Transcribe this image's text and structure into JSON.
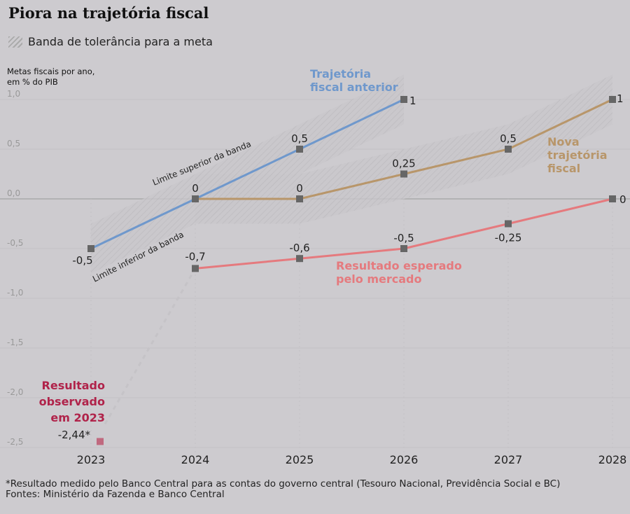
{
  "title": "Piora na trajetória fiscal",
  "legend": {
    "band_label": "Banda de tolerância para a meta"
  },
  "chart_data": {
    "type": "line",
    "ylabel": "Metas fiscais por ano,\nem % do PIB",
    "ylabel_lines": [
      "Metas fiscais por ano,",
      "em % do PIB"
    ],
    "ylim": [
      -2.5,
      1.0
    ],
    "yticks": [
      "1,0",
      "0,5",
      "0,0",
      "-0,5",
      "-1,0",
      "-1,5",
      "-2,0",
      "-2,5"
    ],
    "ytick_values": [
      1.0,
      0.5,
      0.0,
      -0.5,
      -1.0,
      -1.5,
      -2.0,
      -2.5
    ],
    "categories": [
      "2023",
      "2024",
      "2025",
      "2026",
      "2027",
      "2028"
    ],
    "grid": true,
    "band_halfwidth": 0.25,
    "band_annotations": [
      "Limite superior da banda",
      "Limite inferior da banda"
    ],
    "series": [
      {
        "name": "Trajetória fiscal anterior",
        "name_lines": [
          "Trajetória",
          "fiscal anterior"
        ],
        "color": "#6f98cc",
        "x": [
          "2023",
          "2024",
          "2025",
          "2026"
        ],
        "values": [
          -0.5,
          0,
          0.5,
          1
        ],
        "labels": [
          "-0,5",
          "0",
          "0,5",
          "1"
        ],
        "band": true
      },
      {
        "name": "Nova trajetória fiscal",
        "name_lines": [
          "Nova",
          "trajetória",
          "fiscal"
        ],
        "color": "#b8966a",
        "x": [
          "2024",
          "2025",
          "2026",
          "2027",
          "2028"
        ],
        "values": [
          0,
          0,
          0.25,
          0.5,
          1
        ],
        "labels": [
          "",
          "0",
          "0,25",
          "0,5",
          "1"
        ],
        "band": true
      },
      {
        "name": "Resultado esperado pelo mercado",
        "name_lines": [
          "Resultado esperado",
          "pelo mercado"
        ],
        "color": "#e57a7e",
        "x": [
          "2024",
          "2025",
          "2026",
          "2027",
          "2028"
        ],
        "values": [
          -0.7,
          -0.6,
          -0.5,
          -0.25,
          0
        ],
        "labels": [
          "-0,7",
          "-0,6",
          "-0,5",
          "-0,25",
          "0"
        ],
        "band": false
      }
    ],
    "observed": {
      "name_lines": [
        "Resultado",
        "observado",
        "em 2023"
      ],
      "x": "2023",
      "value": -2.44,
      "label": "-2,44*",
      "color": "#c0697f",
      "text_color": "#b0234a"
    }
  },
  "notes": [
    "*Resultado medido pelo Banco Central para as contas do governo central (Tesouro Nacional, Previdência Social e BC)",
    "Fontes: Ministério da Fazenda e Banco Central"
  ]
}
